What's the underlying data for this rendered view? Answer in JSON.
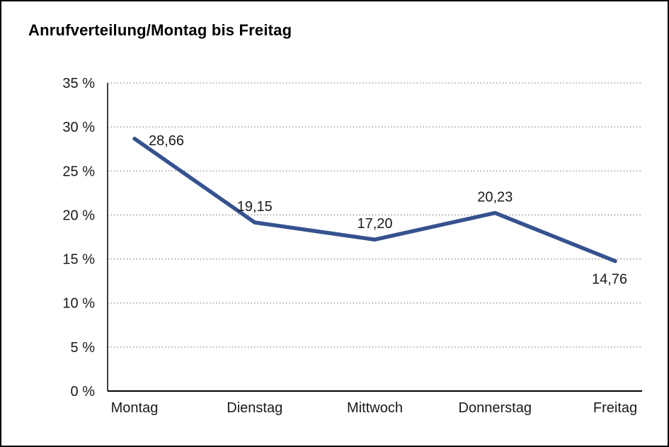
{
  "chart_data": {
    "type": "line",
    "title": "Anrufverteilung/Montag bis Freitag",
    "categories": [
      "Montag",
      "Dienstag",
      "Mittwoch",
      "Donnerstag",
      "Freitag"
    ],
    "series": [
      {
        "name": "Anrufverteilung",
        "values": [
          28.66,
          19.15,
          17.2,
          20.23,
          14.76
        ],
        "value_labels": [
          "28,66",
          "19,15",
          "17,20",
          "20,23",
          "14,76"
        ],
        "label_positions": [
          "right",
          "above",
          "above",
          "above",
          "below"
        ]
      }
    ],
    "xlabel": "",
    "ylabel": "",
    "y_axis": {
      "min": 0,
      "max": 35,
      "step": 5,
      "tick_labels": [
        "0 %",
        "5 %",
        "10 %",
        "15 %",
        "20 %",
        "25 %",
        "30 %",
        "35 %"
      ]
    },
    "grid": "horizontal-dotted",
    "legend": "none",
    "colors": {
      "line": "#35528F",
      "grid": "#8c8c8c",
      "axis": "#000000",
      "text": "#1a1a1a",
      "background": "#ffffff"
    },
    "line_width": 5.5
  }
}
